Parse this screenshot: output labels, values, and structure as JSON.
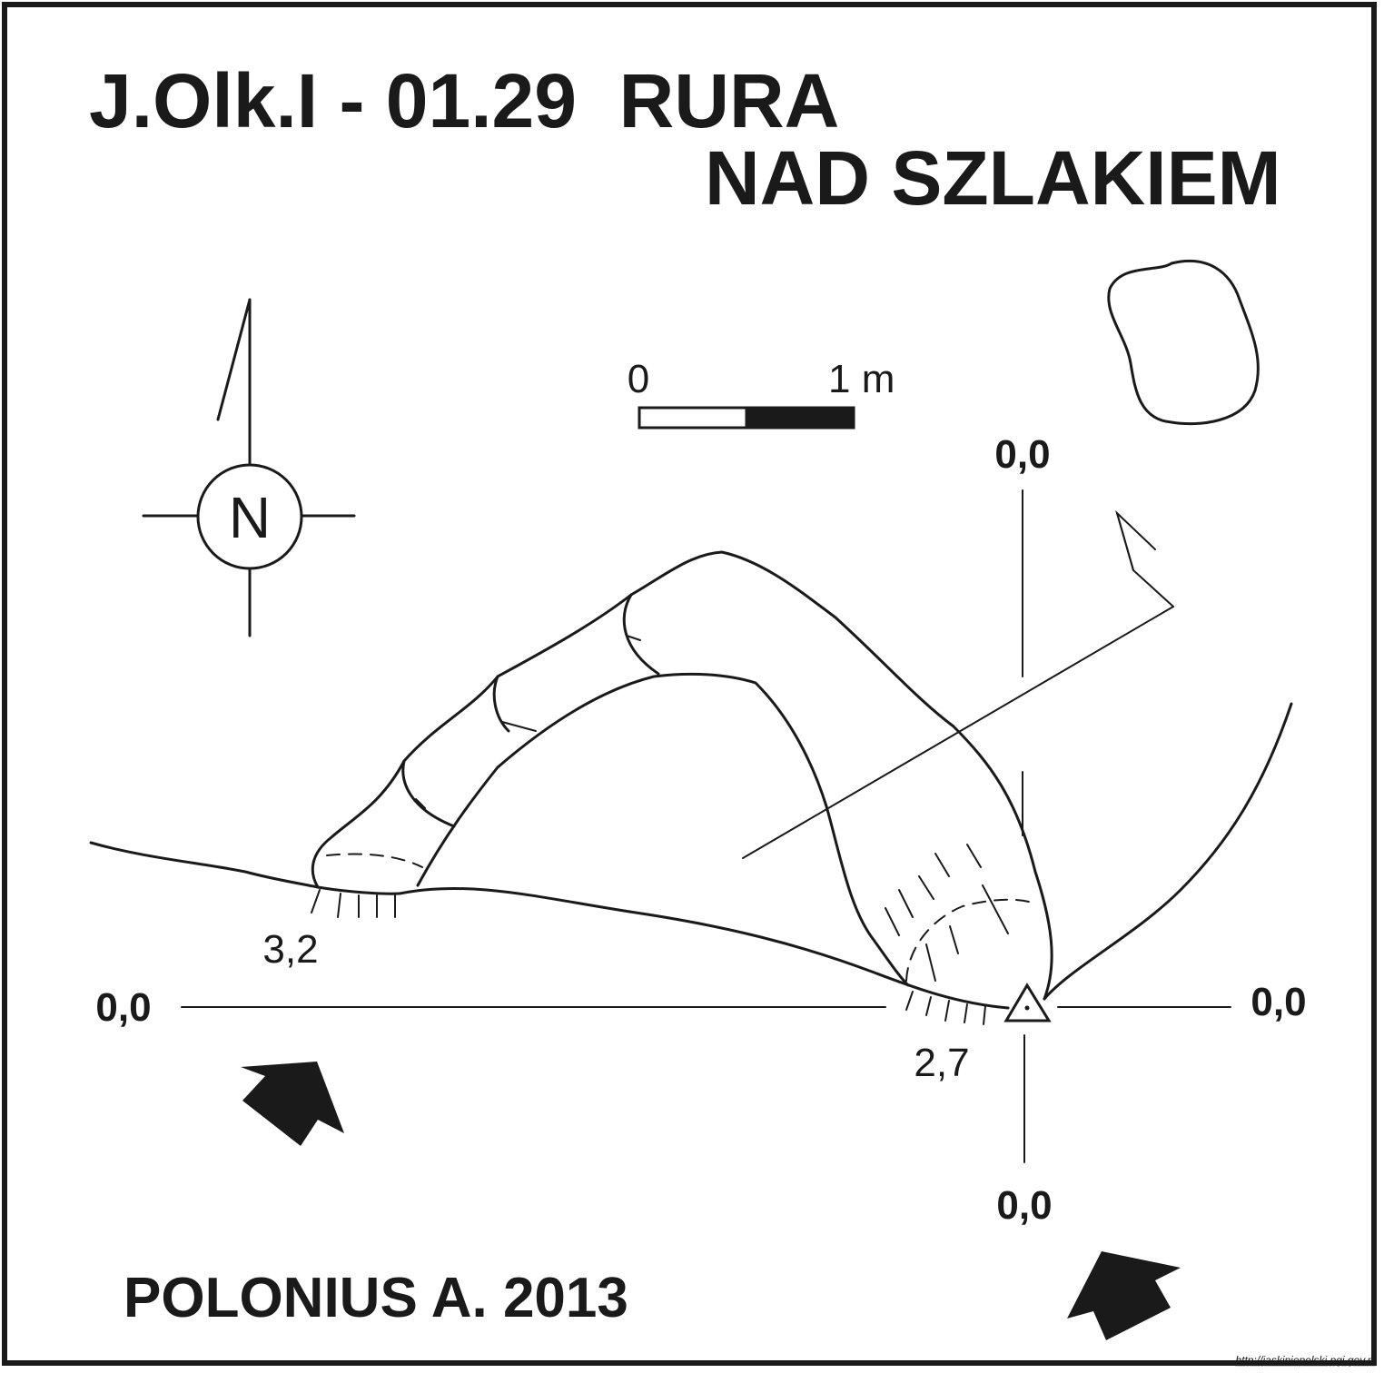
{
  "title": {
    "line1": "J.Olk.I - 01.29  RURA",
    "line2": "NAD SZLAKIEM"
  },
  "north_label": "N",
  "scale": {
    "start_label": "0",
    "end_label": "1 m"
  },
  "datum_labels": {
    "top": "0,0",
    "bottom": "0,0",
    "left": "0,0",
    "right": "0,0"
  },
  "elevations": {
    "left_entrance": "3,2",
    "right_entrance": "2,7"
  },
  "author": "POLONIUS A. 2013",
  "source_url": "http://jaskiniepolski.pgi.gov.pl",
  "colors": {
    "ink": "#1a1a1a",
    "paper": "#ffffff"
  }
}
